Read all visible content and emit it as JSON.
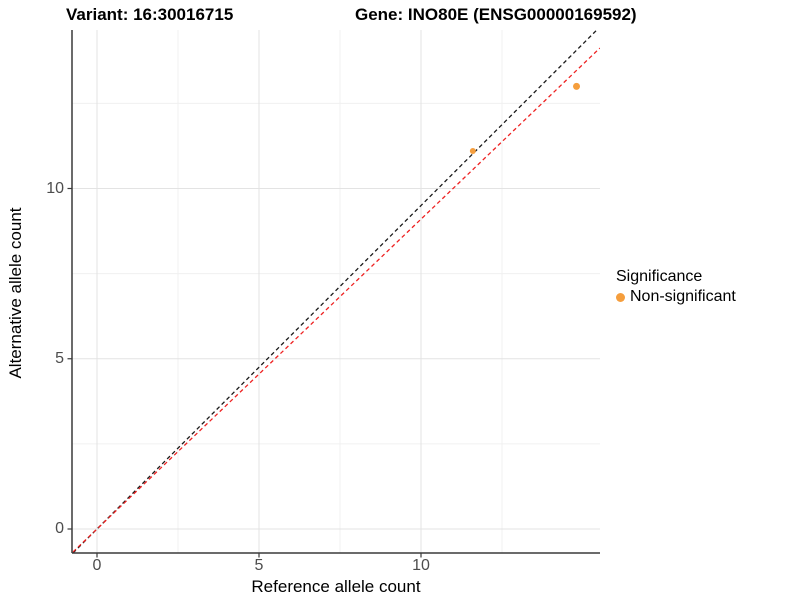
{
  "chart_data": {
    "type": "scatter",
    "title_left": "Variant: 16:30016715",
    "title_right": "Gene: INO80E (ENSG00000169592)",
    "xlabel": "Reference allele count",
    "ylabel": "Alternative allele count",
    "xlim": [
      -0.74,
      15.52
    ],
    "ylim": [
      -0.7,
      14.66
    ],
    "x_major_breaks": [
      0,
      5,
      10
    ],
    "y_major_breaks": [
      0,
      5,
      10
    ],
    "x_minor_breaks": [
      2.5,
      7.5,
      12.5
    ],
    "y_minor_breaks": [
      2.5,
      7.5,
      12.5
    ],
    "grid": {
      "major_color": "#e3e3e3",
      "minor_color": "#f0f0f0"
    },
    "axis_color": "#3a3a3a",
    "points": [
      {
        "x": 11.6,
        "y": 11.1,
        "r": 3,
        "color": "#f59e3d",
        "label": "Non-significant"
      },
      {
        "x": 14.8,
        "y": 13.0,
        "r": 3.5,
        "color": "#f59e3d",
        "label": "Non-significant"
      }
    ],
    "lines": [
      {
        "name": "identity-line",
        "slope": 0.95,
        "intercept": 0,
        "color": "#1a1a1a",
        "dash": "4 3"
      },
      {
        "name": "fitted-line",
        "slope": 0.91,
        "intercept": 0,
        "color": "#ee2222",
        "dash": "4 3"
      }
    ],
    "legend": {
      "title": "Significance",
      "items": [
        {
          "label": "Non-significant",
          "color": "#f59e3d"
        }
      ]
    }
  }
}
